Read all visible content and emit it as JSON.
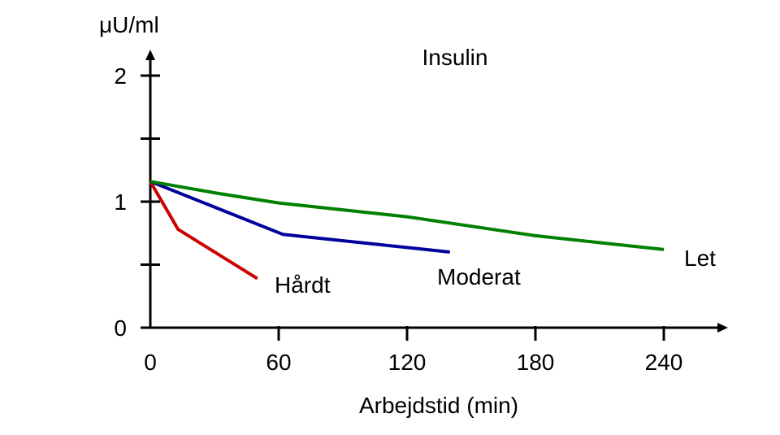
{
  "chart_data": {
    "type": "line",
    "title": "Insulin",
    "xlabel": "Arbejdstid (min)",
    "ylabel": "μU/ml",
    "xlim": [
      0,
      270
    ],
    "ylim": [
      0,
      2.1
    ],
    "x_ticks": [
      0,
      60,
      120,
      180,
      240
    ],
    "x_tick_labels": [
      "0",
      "60",
      "120",
      "180",
      "240"
    ],
    "y_ticks": [
      0,
      0.5,
      1,
      1.5,
      2
    ],
    "y_tick_labels": [
      "0",
      "",
      "1",
      "",
      "2"
    ],
    "grid": false,
    "series": [
      {
        "name": "Hårdt",
        "color": "#cc0000",
        "x": [
          0,
          13,
          50
        ],
        "y": [
          1.16,
          0.78,
          0.39
        ]
      },
      {
        "name": "Moderat",
        "color": "#00009c",
        "x": [
          0,
          62,
          140
        ],
        "y": [
          1.16,
          0.74,
          0.6
        ]
      },
      {
        "name": "Let",
        "color": "#008000",
        "x": [
          0,
          30,
          60,
          120,
          180,
          240
        ],
        "y": [
          1.16,
          1.07,
          0.99,
          0.88,
          0.73,
          0.62
        ]
      }
    ]
  }
}
